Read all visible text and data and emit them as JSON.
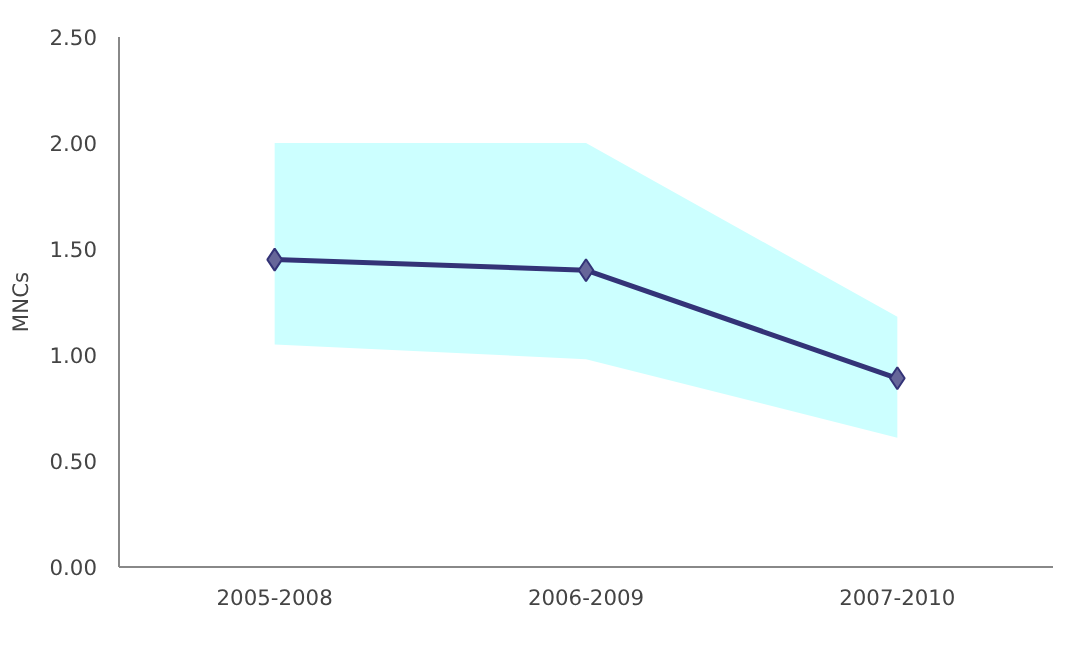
{
  "chart_data": {
    "type": "line",
    "ylabel": "MNCs",
    "categories": [
      "2005-2008",
      "2006-2009",
      "2007-2010"
    ],
    "series": [
      {
        "color": "#333377",
        "values": [
          1.45,
          1.4,
          0.89
        ],
        "lower": [
          1.05,
          0.98,
          0.61
        ],
        "upper": [
          2.0,
          2.0,
          1.18
        ]
      }
    ],
    "ylim": [
      0,
      2.5
    ],
    "yticks": [
      {
        "value": 0,
        "label": "0.00"
      },
      {
        "value": 0.5,
        "label": "0.50"
      },
      {
        "value": 1,
        "label": "1.00"
      },
      {
        "value": 1.5,
        "label": "1.50"
      },
      {
        "value": 2,
        "label": "2.00"
      },
      {
        "value": 2.5,
        "label": "2.50"
      }
    ],
    "grid": false,
    "marker": "diamond",
    "line_style": "solid"
  }
}
